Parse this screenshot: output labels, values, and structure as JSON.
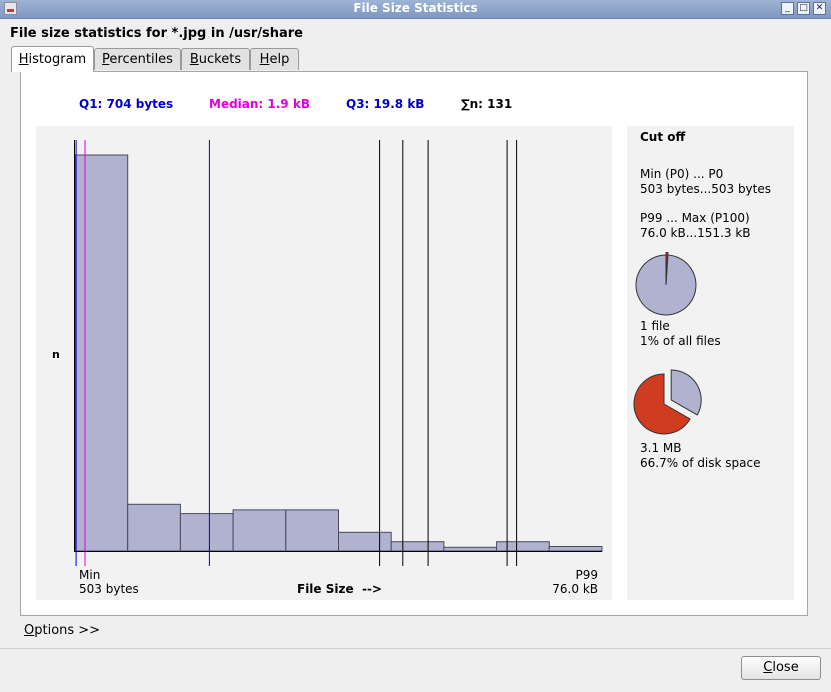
{
  "window": {
    "title": "File Size Statistics"
  },
  "heading": "File size statistics for *.jpg in /usr/share",
  "tabs": [
    {
      "label": "Histogram",
      "accel": "H",
      "rest": "istogram",
      "active": true
    },
    {
      "label": "Percentiles",
      "accel": "P",
      "rest": "ercentiles",
      "active": false
    },
    {
      "label": "Buckets",
      "accel": "B",
      "rest": "uckets",
      "active": false
    },
    {
      "label": "Help",
      "accel": "H",
      "rest": "elp",
      "active": false
    }
  ],
  "stats": {
    "q1": "Q1: 704 bytes",
    "median": "Median: 1.9 kB",
    "q3": "Q3: 19.8 kB",
    "count": "∑n: 131"
  },
  "colors": {
    "bar_fill": "#b0b2d0",
    "q1_line": "#0000cc",
    "median_line": "#e000e0",
    "percentile_line": "#000000",
    "disk_slice": "#d03c1f",
    "files_pie": "#b0b2d0"
  },
  "chart_data": {
    "type": "bar",
    "xlabel": "File Size  -->",
    "ylabel": "n",
    "x_min_label": "Min",
    "x_min_value": "503 bytes",
    "x_max_label": "P99",
    "x_max_value": "76.0 kB",
    "bucket_count": 10,
    "values": [
      106,
      12.5,
      10,
      11,
      11,
      5,
      2.5,
      1,
      2.5,
      1.2
    ],
    "y_max": 106,
    "markers": [
      {
        "type": "min",
        "bucket_pos": 0.02
      },
      {
        "type": "median",
        "bucket_pos": 0.19
      },
      {
        "type": "q1",
        "bucket_pos": 2.55
      },
      {
        "type": "percentile",
        "bucket_pos": 5.78
      },
      {
        "type": "percentile",
        "bucket_pos": 6.22
      },
      {
        "type": "percentile",
        "bucket_pos": 6.7
      },
      {
        "type": "percentile",
        "bucket_pos": 8.2
      },
      {
        "type": "percentile",
        "bucket_pos": 8.38
      }
    ]
  },
  "cutoff": {
    "title": "Cut off",
    "min_label": "Min (P0) ... P0",
    "min_value": "503 bytes...503 bytes",
    "max_label": "P99 ... Max (P100)",
    "max_value": "76.0 kB...151.3 kB",
    "files_fraction": 0.01,
    "files_count": "1 file",
    "files_percent": "1% of all files",
    "disk_fraction": 0.667,
    "disk_size": "3.1 MB",
    "disk_percent": "66.7% of disk space"
  },
  "footer": {
    "options": "Options >>",
    "options_accel": "O",
    "options_rest": "ptions >>"
  },
  "buttons": {
    "close": "Close",
    "close_accel": "C",
    "close_rest": "lose"
  }
}
